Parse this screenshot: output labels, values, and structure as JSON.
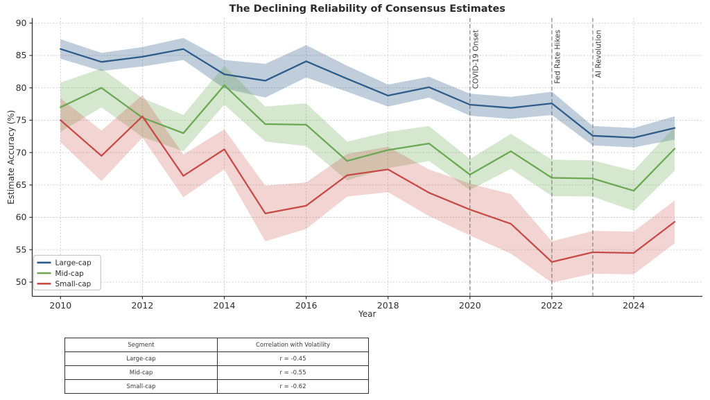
{
  "title": "The Declining Reliability of Consensus Estimates",
  "chart_data": {
    "type": "line",
    "title": "The Declining Reliability of Consensus Estimates",
    "xlabel": "Year",
    "ylabel": "Estimate Accuracy (%)",
    "xlim": [
      2009.3,
      2025.6
    ],
    "ylim": [
      47.7,
      90.8
    ],
    "x_ticks": [
      2010,
      2012,
      2014,
      2016,
      2018,
      2020,
      2022,
      2024
    ],
    "y_ticks": [
      50,
      55,
      60,
      65,
      70,
      75,
      80,
      85,
      90
    ],
    "grid": "dashed",
    "legend_position": "lower-left",
    "x": [
      2010,
      2011,
      2012,
      2013,
      2014,
      2015,
      2016,
      2017,
      2018,
      2019,
      2020,
      2021,
      2022,
      2023,
      2024,
      2025
    ],
    "series": [
      {
        "name": "Large-cap",
        "color": "#2d5c8a",
        "band_alpha": 0.3,
        "values": [
          86.0,
          84.0,
          84.8,
          86.0,
          82.1,
          81.1,
          84.1,
          81.4,
          78.8,
          80.1,
          77.4,
          76.9,
          77.6,
          72.6,
          72.3,
          73.8
        ],
        "band_halfwidth": [
          1.5,
          1.4,
          1.5,
          1.7,
          2.2,
          2.6,
          2.5,
          2.0,
          1.7,
          1.6,
          1.7,
          1.7,
          1.8,
          1.5,
          1.5,
          1.8
        ]
      },
      {
        "name": "Mid-cap",
        "color": "#6aa852",
        "band_alpha": 0.28,
        "values": [
          77.0,
          80.0,
          75.4,
          73.0,
          80.4,
          74.4,
          74.3,
          68.7,
          70.4,
          71.4,
          66.6,
          70.2,
          66.1,
          66.0,
          64.1,
          70.6
        ],
        "band_halfwidth": [
          3.8,
          3.0,
          3.0,
          2.8,
          3.0,
          2.7,
          3.3,
          3.0,
          2.8,
          2.7,
          2.4,
          2.7,
          2.8,
          2.8,
          3.1,
          3.4
        ]
      },
      {
        "name": "Small-cap",
        "color": "#c84a46",
        "band_alpha": 0.24,
        "values": [
          75.0,
          69.5,
          75.6,
          66.4,
          70.5,
          60.6,
          61.8,
          66.5,
          67.4,
          63.8,
          61.2,
          59.0,
          53.1,
          54.6,
          54.5,
          59.3
        ],
        "band_halfwidth": [
          3.4,
          3.9,
          3.3,
          3.3,
          3.1,
          4.3,
          3.6,
          3.3,
          3.5,
          3.6,
          4.0,
          4.6,
          3.2,
          3.3,
          3.3,
          3.3
        ]
      }
    ],
    "events": [
      {
        "year": 2020,
        "label": "COVID-19 Onset"
      },
      {
        "year": 2022,
        "label": "Fed Rate Hikes"
      },
      {
        "year": 2023,
        "label": "AI Revolution"
      }
    ],
    "legend": [
      "Large-cap",
      "Mid-cap",
      "Small-cap"
    ]
  },
  "table": {
    "headers": [
      "Segment",
      "Correlation with Volatility"
    ],
    "rows": [
      {
        "segment": "Large-cap",
        "correlation": "r = -0.45"
      },
      {
        "segment": "Mid-cap",
        "correlation": "r = -0.55"
      },
      {
        "segment": "Small-cap",
        "correlation": "r = -0.62"
      }
    ]
  },
  "colors": {
    "grid": "#c8c8c8",
    "spine": "#2f2f2f",
    "event_line": "#777777",
    "text": "#2e2e2e",
    "legend_border": "#b9b9b9"
  }
}
